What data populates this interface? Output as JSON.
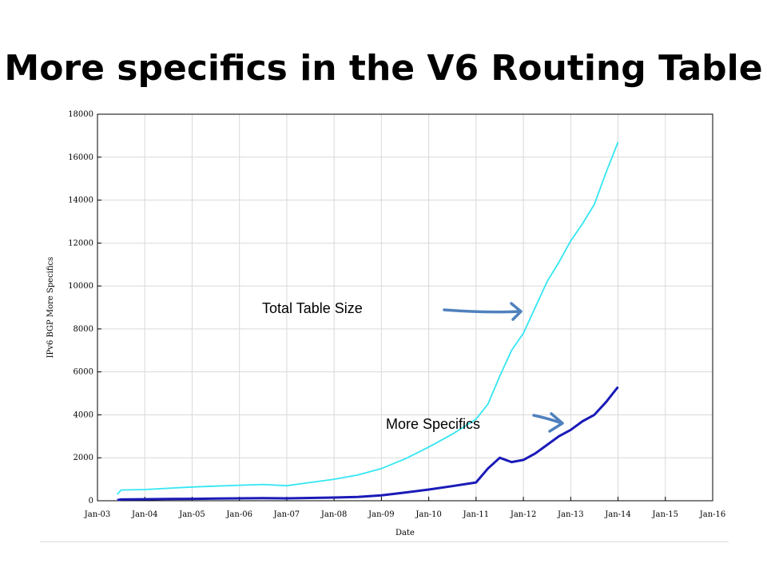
{
  "slide": {
    "title": "More specifics in the V6 Routing Table"
  },
  "colors": {
    "total_series": "#33e6f2",
    "more_specifics_series": "#1a1ab8",
    "annotation_arrow": "#4f81bd",
    "grid": "#d9d9d9"
  },
  "chart_data": {
    "type": "line",
    "title": "",
    "xlabel": "Date",
    "ylabel": "IPv6 BGP More Specifics",
    "ylim": [
      0,
      18000
    ],
    "yticks": [
      "0",
      "2000",
      "4000",
      "6000",
      "8000",
      "10000",
      "12000",
      "14000",
      "16000",
      "18000"
    ],
    "xlim": [
      "2003-01",
      "2016-01"
    ],
    "xticks": [
      "Jan-03",
      "Jan-04",
      "Jan-05",
      "Jan-06",
      "Jan-07",
      "Jan-08",
      "Jan-09",
      "Jan-10",
      "Jan-11",
      "Jan-12",
      "Jan-13",
      "Jan-14",
      "Jan-15",
      "Jan-16"
    ],
    "grid": true,
    "series": [
      {
        "name": "Total Table Size",
        "x": [
          "2003-06",
          "2003-07",
          "2004-01",
          "2004-07",
          "2005-01",
          "2005-07",
          "2006-01",
          "2006-07",
          "2007-01",
          "2007-07",
          "2008-01",
          "2008-07",
          "2009-01",
          "2009-07",
          "2010-01",
          "2010-07",
          "2011-01",
          "2011-04",
          "2011-07",
          "2011-10",
          "2012-01",
          "2012-04",
          "2012-07",
          "2012-10",
          "2013-01",
          "2013-04",
          "2013-07",
          "2013-10",
          "2014-01"
        ],
        "values": [
          300,
          500,
          520,
          580,
          640,
          680,
          720,
          760,
          700,
          850,
          1000,
          1200,
          1500,
          1950,
          2500,
          3100,
          3800,
          4500,
          5800,
          7000,
          7800,
          9000,
          10200,
          11100,
          12100,
          12900,
          13800,
          15300,
          16700
        ]
      },
      {
        "name": "More Specifics",
        "x": [
          "2003-06",
          "2003-07",
          "2004-01",
          "2004-07",
          "2005-01",
          "2005-07",
          "2006-01",
          "2006-07",
          "2007-01",
          "2007-07",
          "2008-01",
          "2008-07",
          "2009-01",
          "2009-07",
          "2010-01",
          "2010-07",
          "2011-01",
          "2011-04",
          "2011-07",
          "2011-10",
          "2012-01",
          "2012-04",
          "2012-07",
          "2012-10",
          "2013-01",
          "2013-04",
          "2013-07",
          "2013-10",
          "2014-01"
        ],
        "values": [
          30,
          60,
          70,
          80,
          90,
          100,
          110,
          120,
          110,
          130,
          150,
          180,
          250,
          380,
          520,
          680,
          850,
          1500,
          2000,
          1800,
          1900,
          2200,
          2600,
          3000,
          3300,
          3700,
          4000,
          4600,
          5300
        ]
      }
    ],
    "annotations": [
      {
        "text": "Total Table Size",
        "points_to": "Total Table Size"
      },
      {
        "text": "More Specifics",
        "points_to": "More Specifics"
      }
    ]
  }
}
